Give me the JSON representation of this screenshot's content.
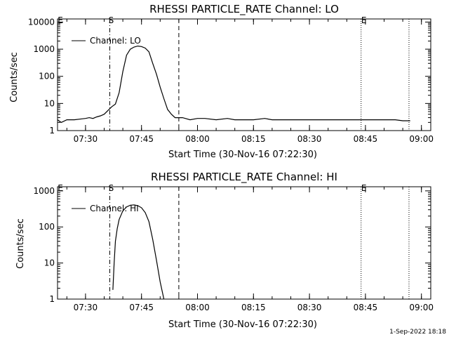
{
  "chart_data": [
    {
      "type": "line",
      "title": "RHESSI PARTICLE_RATE Channel: LO",
      "xlabel": "Start Time (30-Nov-16 07:22:30)",
      "ylabel": "Counts/sec",
      "x_ticks": [
        "07:30",
        "07:45",
        "08:00",
        "08:15",
        "08:30",
        "08:45",
        "09:00"
      ],
      "y_ticks": [
        "1",
        "10",
        "100",
        "1000",
        "10000"
      ],
      "xlim": [
        "07:22:30",
        "09:02:30"
      ],
      "ylim": [
        1,
        13000
      ],
      "yscale": "log",
      "legend": "top-left",
      "markers": {
        "S": "07:36:30",
        "E": "08:43:50"
      },
      "series": [
        {
          "name": "Channel: LO",
          "x": [
            "07:22:30",
            "07:23:30",
            "07:25:00",
            "07:27:00",
            "07:29:00",
            "07:30:00",
            "07:31:00",
            "07:32:00",
            "07:33:00",
            "07:34:00",
            "07:35:00",
            "07:36:00",
            "07:37:00",
            "07:38:00",
            "07:39:00",
            "07:40:00",
            "07:41:00",
            "07:42:00",
            "07:43:00",
            "07:44:00",
            "07:45:00",
            "07:46:00",
            "07:47:00",
            "07:48:00",
            "07:49:00",
            "07:50:00",
            "07:51:00",
            "07:52:00",
            "07:53:00",
            "07:54:00",
            "07:56:00",
            "07:58:00",
            "08:00:00",
            "08:02:00",
            "08:05:00",
            "08:08:00",
            "08:10:00",
            "08:12:00",
            "08:15:00",
            "08:18:00",
            "08:20:00",
            "08:25:00",
            "08:30:00",
            "08:35:00",
            "08:40:00",
            "08:43:00",
            "08:45:00",
            "08:47:00",
            "08:50:00",
            "08:53:00",
            "08:55:00",
            "08:57:00"
          ],
          "values": [
            2.5,
            2.0,
            2.5,
            2.5,
            2.7,
            2.8,
            3.0,
            2.8,
            3.2,
            3.5,
            4.0,
            5.5,
            7.5,
            9.5,
            25,
            150,
            600,
            1000,
            1200,
            1300,
            1250,
            1100,
            800,
            300,
            120,
            40,
            15,
            6,
            4,
            3,
            3,
            2.5,
            2.8,
            2.8,
            2.5,
            2.8,
            2.5,
            2.5,
            2.5,
            2.8,
            2.5,
            2.5,
            2.5,
            2.5,
            2.5,
            2.5,
            2.5,
            2.5,
            2.5,
            2.5,
            2.3,
            2.3
          ]
        }
      ]
    },
    {
      "type": "line",
      "title": "RHESSI PARTICLE_RATE Channel: HI",
      "xlabel": "Start Time (30-Nov-16 07:22:30)",
      "ylabel": "Counts/sec",
      "x_ticks": [
        "07:30",
        "07:45",
        "08:00",
        "08:15",
        "08:30",
        "08:45",
        "09:00"
      ],
      "y_ticks": [
        "1",
        "10",
        "100",
        "1000"
      ],
      "xlim": [
        "07:22:30",
        "09:02:30"
      ],
      "ylim": [
        1,
        1300
      ],
      "yscale": "log",
      "legend": "top-left",
      "markers": {
        "S": "07:36:30",
        "E": "08:43:50"
      },
      "series": [
        {
          "name": "Channel: HI",
          "x": [
            "07:37:20",
            "07:37:40",
            "07:38:00",
            "07:38:30",
            "07:39:00",
            "07:40:00",
            "07:41:00",
            "07:42:00",
            "07:43:00",
            "07:44:00",
            "07:45:00",
            "07:46:00",
            "07:47:00",
            "07:48:00",
            "07:49:00",
            "07:50:00",
            "07:51:00"
          ],
          "values": [
            1.8,
            10,
            40,
            90,
            160,
            280,
            360,
            400,
            410,
            390,
            340,
            250,
            140,
            45,
            12,
            3,
            1
          ]
        }
      ]
    }
  ],
  "footer": {
    "timestamp": "1-Sep-2022 18:18"
  },
  "colors": {
    "line": "#000000",
    "background": "#ffffff"
  }
}
